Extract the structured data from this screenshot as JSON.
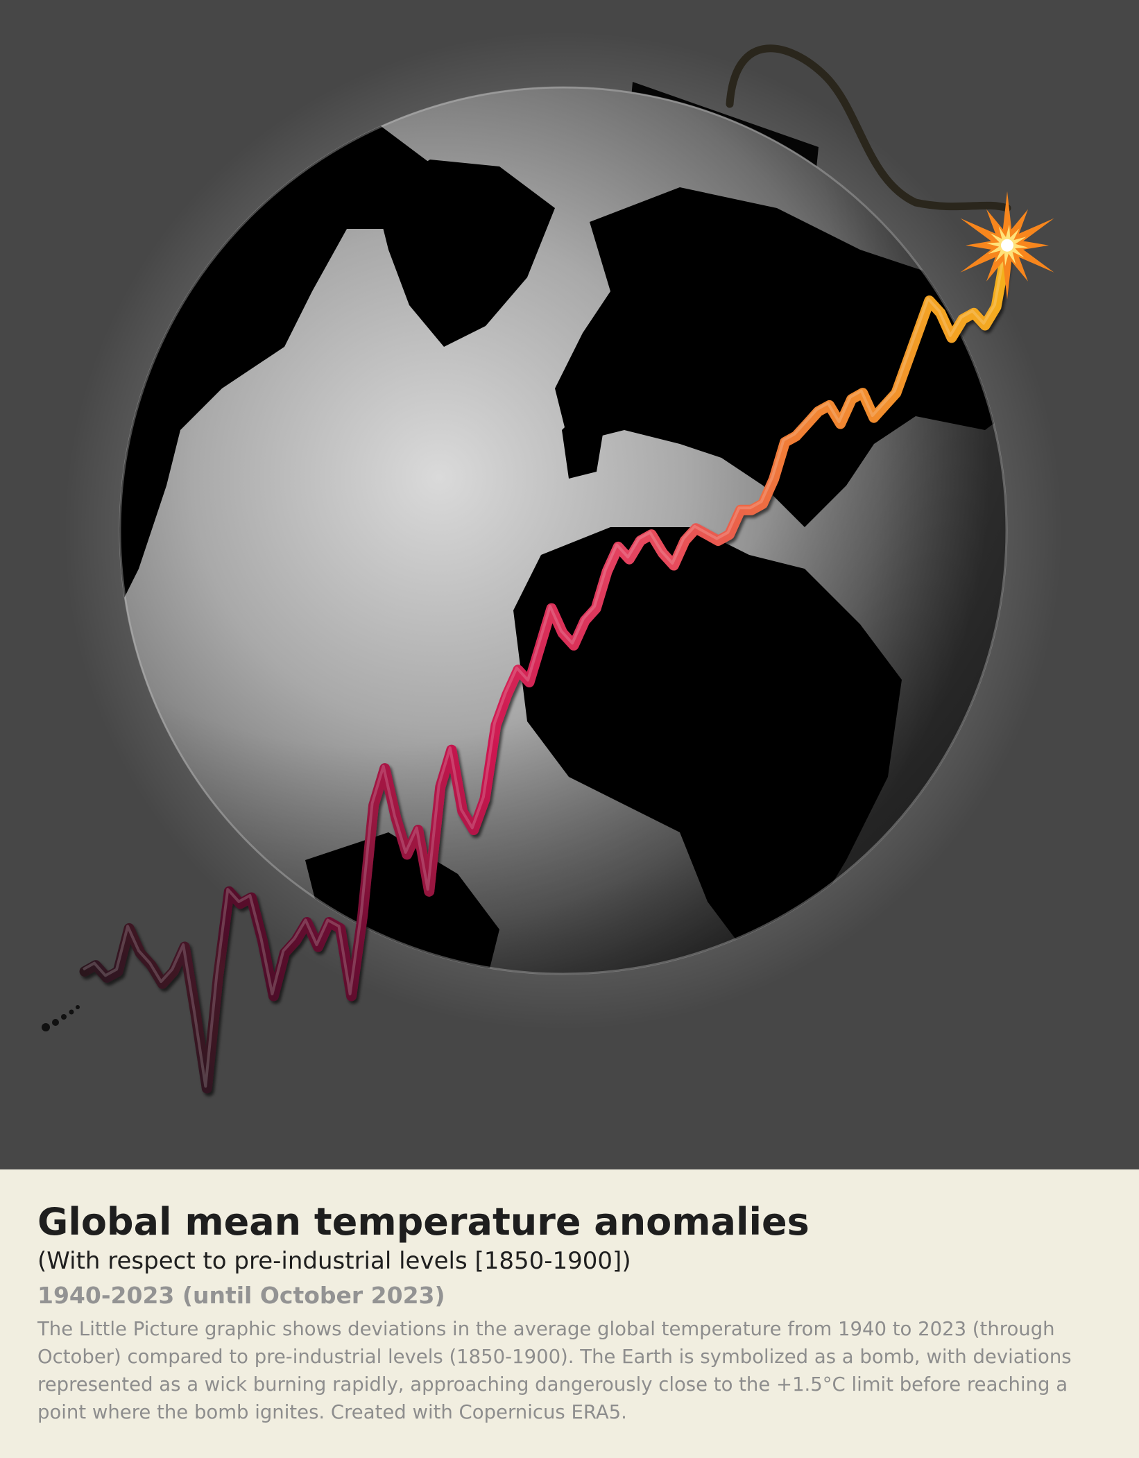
{
  "caption": {
    "title": "Global mean temperature anomalies",
    "subtitle": "(With respect to pre-industrial levels [1850-1900])",
    "range": "1940-2023 (until October 2023)",
    "description": "The Little Picture graphic shows deviations in the average global temperature from 1940 to 2023 (through October) compared to pre-industrial levels (1850-1900). The Earth is symbolized as a bomb, with deviations represented as a wick burning rapidly, approaching dangerously close to the +1.5°C limit before reaching a point where the bomb ignites. Created with Copernicus ERA5."
  },
  "colors": {
    "background": "#474747",
    "caption_background": "#f1eee0",
    "globe_dark": "#000000",
    "globe_light": "#b4b4b4",
    "wick_start": "#1a1a1a",
    "wick_mid": "#cc1650",
    "wick_high": "#f07a38",
    "wick_end": "#f4b21c",
    "spark": "#f7861d"
  },
  "chart_data": {
    "type": "line",
    "xlim": [
      1940,
      2023
    ],
    "ylim": [
      0.0,
      1.55
    ],
    "series": [
      {
        "x": [
          1940,
          1941,
          1942,
          1943,
          1944,
          1945,
          1946,
          1947,
          1948,
          1949,
          1950,
          1951,
          1952,
          1953,
          1954,
          1955,
          1956,
          1957,
          1958,
          1959,
          1960,
          1961,
          1962,
          1963,
          1964,
          1965,
          1966,
          1967,
          1968,
          1969,
          1970,
          1971,
          1972,
          1973,
          1974,
          1975,
          1976,
          1977,
          1978,
          1979,
          1980,
          1981,
          1982,
          1983,
          1984,
          1985,
          1986,
          1987,
          1988,
          1989,
          1990,
          1991,
          1992,
          1993,
          1994,
          1995,
          1996,
          1997,
          1998,
          1999,
          2000,
          2001,
          2002,
          2003,
          2004,
          2005,
          2006,
          2007,
          2008,
          2009,
          2010,
          2011,
          2012,
          2013,
          2014,
          2015,
          2016,
          2017,
          2018,
          2019,
          2020,
          2021,
          2022,
          2023
        ],
        "y": [
          0.27,
          0.28,
          0.26,
          0.27,
          0.34,
          0.3,
          0.28,
          0.25,
          0.27,
          0.31,
          0.2,
          0.08,
          0.26,
          0.4,
          0.38,
          0.39,
          0.32,
          0.23,
          0.3,
          0.32,
          0.35,
          0.31,
          0.35,
          0.34,
          0.23,
          0.36,
          0.54,
          0.6,
          0.52,
          0.46,
          0.5,
          0.4,
          0.57,
          0.63,
          0.53,
          0.5,
          0.55,
          0.67,
          0.72,
          0.76,
          0.74,
          0.8,
          0.86,
          0.82,
          0.8,
          0.84,
          0.86,
          0.92,
          0.96,
          0.94,
          0.97,
          0.98,
          0.95,
          0.93,
          0.97,
          0.99,
          0.98,
          0.97,
          0.98,
          1.02,
          1.02,
          1.03,
          1.07,
          1.13,
          1.14,
          1.16,
          1.18,
          1.19,
          1.16,
          1.2,
          1.21,
          1.17,
          1.19,
          1.21,
          1.26,
          1.31,
          1.36,
          1.34,
          1.3,
          1.33,
          1.34,
          1.32,
          1.35,
          1.45
        ]
      }
    ]
  }
}
